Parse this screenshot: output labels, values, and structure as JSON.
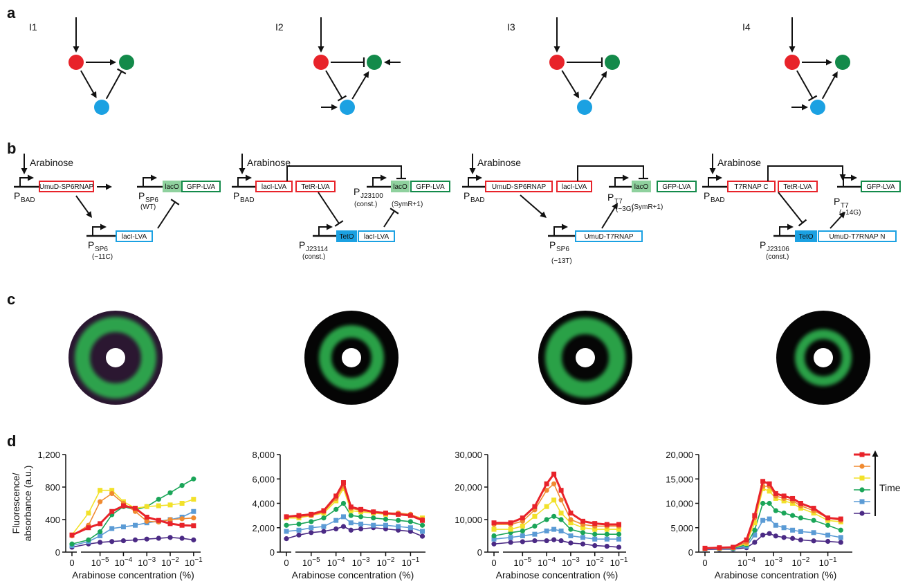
{
  "panels": [
    "a",
    "b",
    "c",
    "d"
  ],
  "networks": [
    "I1",
    "I2",
    "I3",
    "I4"
  ],
  "circuits": [
    {
      "input": "Arabinose",
      "parts": [
        "UmuD-SP6RNAP",
        "lacO",
        "GFP-LVA",
        "lacI-LVA"
      ],
      "promoters": [
        {
          "name": "P",
          "sub": "BAD"
        },
        {
          "name": "P",
          "sub": "SP6",
          "note": "(WT)"
        },
        {
          "name": "P",
          "sub": "SP6",
          "note": "(−11C)"
        }
      ]
    },
    {
      "input": "Arabinose",
      "parts": [
        "lacI-LVA",
        "TetR-LVA",
        "lacO",
        "GFP-LVA",
        "TetO",
        "lacI-LVA"
      ],
      "promoters": [
        {
          "name": "P",
          "sub": "BAD"
        },
        {
          "name": "P",
          "sub": "J23100",
          "note": "(const.)"
        },
        {
          "name": "P",
          "sub": "J23114",
          "note": "(const.)"
        }
      ],
      "extra": "(SymR+1)"
    },
    {
      "input": "Arabinose",
      "parts": [
        "UmuD-SP6RNAP",
        "lacI-LVA",
        "lacO",
        "GFP-LVA",
        "UmuD-T7RNAP"
      ],
      "promoters": [
        {
          "name": "P",
          "sub": "BAD"
        },
        {
          "name": "P",
          "sub": "T7",
          "note": "(−3G)"
        },
        {
          "name": "P",
          "sub": "SP6",
          "note": "(−13T)"
        }
      ],
      "extra": "(SymR+1)"
    },
    {
      "input": "Arabinose",
      "parts": [
        "T7RNAP C",
        "TetR-LVA",
        "GFP-LVA",
        "TetO",
        "UmuD-T7RNAP N"
      ],
      "promoters": [
        {
          "name": "P",
          "sub": "BAD"
        },
        {
          "name": "P",
          "sub": "T7",
          "note": "(−14G)"
        },
        {
          "name": "P",
          "sub": "J23106",
          "note": "(const.)"
        }
      ]
    }
  ],
  "chart_data": [
    {
      "type": "line",
      "xscale": "log",
      "xlabel": "Arabinose concentration (%)",
      "ylabel": [
        "Fluorescence/",
        "absorbance (a.u.)"
      ],
      "x": [
        0,
        3.2e-06,
        1e-05,
        3.2e-05,
        0.0001,
        0.00032,
        0.001,
        0.0032,
        0.01,
        0.032,
        0.1
      ],
      "xlim": [
        2e-06,
        0.2
      ],
      "xticks": [
        0,
        {
          "value": 1e-05,
          "label": "10−5"
        },
        {
          "value": 0.0001,
          "label": "10−4"
        },
        {
          "value": 0.001,
          "label": "10−3"
        },
        {
          "value": 0.01,
          "label": "10−2"
        },
        {
          "value": 0.1,
          "label": "10−1"
        }
      ],
      "ylim": [
        0,
        1200
      ],
      "yticks": [
        0,
        400,
        800,
        {
          "value": 1200,
          "label": "1,200"
        }
      ],
      "series": [
        {
          "color": "#e8232a",
          "marker": "square",
          "values": [
            210,
            300,
            350,
            500,
            570,
            540,
            430,
            390,
            350,
            330,
            325
          ]
        },
        {
          "color": "#f08a30",
          "marker": "circle",
          "values": [
            200,
            330,
            620,
            720,
            600,
            500,
            380,
            370,
            400,
            410,
            420
          ]
        },
        {
          "color": "#f2e12a",
          "marker": "square",
          "values": [
            210,
            480,
            760,
            760,
            620,
            540,
            560,
            570,
            580,
            600,
            650
          ]
        },
        {
          "color": "#1aa558",
          "marker": "circle",
          "values": [
            100,
            150,
            250,
            460,
            560,
            520,
            560,
            650,
            730,
            820,
            900
          ]
        },
        {
          "color": "#5b9bd5",
          "marker": "square",
          "values": [
            80,
            130,
            200,
            290,
            310,
            330,
            360,
            380,
            400,
            430,
            500
          ]
        },
        {
          "color": "#4b2a85",
          "marker": "circle",
          "values": [
            60,
            100,
            120,
            130,
            140,
            150,
            160,
            170,
            180,
            170,
            150
          ]
        }
      ]
    },
    {
      "type": "line",
      "xscale": "log",
      "xlabel": "Arabinose concentration (%)",
      "x": [
        0,
        3.2e-06,
        1e-05,
        3.2e-05,
        0.0001,
        0.0002,
        0.0004,
        0.001,
        0.0032,
        0.01,
        0.032,
        0.1,
        0.3
      ],
      "xlim": [
        3e-06,
        0.4
      ],
      "xticks": [
        0,
        {
          "value": 1e-05,
          "label": "10−5"
        },
        {
          "value": 0.0001,
          "label": "10−4"
        },
        {
          "value": 0.001,
          "label": "10−3"
        },
        {
          "value": 0.01,
          "label": "10−2"
        },
        {
          "value": 0.1,
          "label": "10−1"
        }
      ],
      "ylim": [
        0,
        8000
      ],
      "yticks": [
        0,
        {
          "value": 2000,
          "label": "2,000"
        },
        {
          "value": 4000,
          "label": "4,000"
        },
        {
          "value": 6000,
          "label": "6,000"
        },
        {
          "value": 8000,
          "label": "8,000"
        }
      ],
      "series": [
        {
          "color": "#e8232a",
          "marker": "square",
          "values": [
            2900,
            3000,
            3100,
            3400,
            4600,
            5700,
            3700,
            3500,
            3300,
            3200,
            3100,
            3000,
            2600
          ]
        },
        {
          "color": "#f08a30",
          "marker": "circle",
          "values": [
            2900,
            2900,
            3000,
            3300,
            4400,
            5400,
            3600,
            3400,
            3300,
            3200,
            3200,
            3100,
            2700
          ]
        },
        {
          "color": "#f2e12a",
          "marker": "square",
          "values": [
            2800,
            2800,
            3000,
            3200,
            4200,
            5200,
            3400,
            3300,
            3200,
            3100,
            3100,
            3000,
            2800
          ]
        },
        {
          "color": "#1aa558",
          "marker": "circle",
          "values": [
            2200,
            2300,
            2500,
            2800,
            3500,
            4000,
            3000,
            2900,
            2800,
            2700,
            2600,
            2500,
            2200
          ]
        },
        {
          "color": "#5b9bd5",
          "marker": "square",
          "values": [
            1700,
            1800,
            2000,
            2100,
            2600,
            2900,
            2400,
            2300,
            2200,
            2200,
            2100,
            2000,
            1700
          ]
        },
        {
          "color": "#4b2a85",
          "marker": "circle",
          "values": [
            1100,
            1400,
            1600,
            1700,
            1900,
            2100,
            1800,
            1900,
            2000,
            1900,
            1800,
            1700,
            1300
          ]
        }
      ]
    },
    {
      "type": "line",
      "xscale": "log",
      "xlabel": "Arabinose concentration (%)",
      "x": [
        0,
        3.2e-06,
        1e-05,
        3.2e-05,
        0.0001,
        0.0002,
        0.0004,
        0.001,
        0.0032,
        0.01,
        0.032,
        0.1
      ],
      "xlim": [
        2e-06,
        0.2
      ],
      "xticks": [
        0,
        {
          "value": 1e-05,
          "label": "10−5"
        },
        {
          "value": 0.0001,
          "label": "10−4"
        },
        {
          "value": 0.001,
          "label": "10−3"
        },
        {
          "value": 0.01,
          "label": "10−2"
        },
        {
          "value": 0.1,
          "label": "10−1"
        }
      ],
      "ylim": [
        0,
        30000
      ],
      "yticks": [
        0,
        {
          "value": 10000,
          "label": "10,000"
        },
        {
          "value": 20000,
          "label": "20,000"
        },
        {
          "value": 30000,
          "label": "30,000"
        }
      ],
      "series": [
        {
          "color": "#e8232a",
          "marker": "square",
          "values": [
            9000,
            9000,
            10500,
            14000,
            21000,
            24000,
            19000,
            12000,
            9500,
            8800,
            8500,
            8500
          ]
        },
        {
          "color": "#f08a30",
          "marker": "circle",
          "values": [
            8500,
            8500,
            9500,
            13000,
            19000,
            21000,
            16000,
            10000,
            8500,
            8000,
            8000,
            8000
          ]
        },
        {
          "color": "#f2e12a",
          "marker": "square",
          "values": [
            7000,
            7000,
            8000,
            11000,
            14000,
            16000,
            12000,
            9000,
            7500,
            7000,
            7000,
            7000
          ]
        },
        {
          "color": "#1aa558",
          "marker": "circle",
          "values": [
            5000,
            6000,
            6500,
            8000,
            10000,
            11000,
            10000,
            7000,
            6000,
            5500,
            5500,
            5500
          ]
        },
        {
          "color": "#5b9bd5",
          "marker": "square",
          "values": [
            4000,
            4500,
            5000,
            5500,
            6500,
            7000,
            6500,
            5000,
            4500,
            4000,
            4000,
            4000
          ]
        },
        {
          "color": "#4b2a85",
          "marker": "circle",
          "values": [
            2500,
            3000,
            3200,
            3500,
            3500,
            3800,
            3500,
            2800,
            2500,
            2000,
            1800,
            1500
          ]
        }
      ]
    },
    {
      "type": "line",
      "xscale": "log",
      "xlabel": "Arabinose concentration (%)",
      "legend_title": "Time",
      "x": [
        0,
        1e-05,
        3.2e-05,
        0.0001,
        0.0002,
        0.0004,
        0.0007,
        0.0012,
        0.0024,
        0.005,
        0.01,
        0.03,
        0.1,
        0.3
      ],
      "xlim": [
        8e-06,
        0.8
      ],
      "xticks": [
        0,
        {
          "value": 0.0001,
          "label": "10−4"
        },
        {
          "value": 0.001,
          "label": "10−3"
        },
        {
          "value": 0.01,
          "label": "10−2"
        },
        {
          "value": 0.1,
          "label": "10−1"
        }
      ],
      "ylim": [
        0,
        20000
      ],
      "yticks": [
        0,
        {
          "value": 5000,
          "label": "5,000"
        },
        {
          "value": 10000,
          "label": "10,000"
        },
        {
          "value": 15000,
          "label": "15,000"
        },
        {
          "value": 20000,
          "label": "20,000"
        }
      ],
      "series": [
        {
          "color": "#e8232a",
          "marker": "square",
          "values": [
            800,
            900,
            1000,
            2500,
            7500,
            14500,
            14000,
            12000,
            11500,
            11000,
            10000,
            9000,
            7000,
            6800
          ]
        },
        {
          "color": "#f08a30",
          "marker": "circle",
          "values": [
            700,
            800,
            900,
            2000,
            7000,
            13500,
            13500,
            11500,
            11000,
            10500,
            9500,
            8500,
            7000,
            6500
          ]
        },
        {
          "color": "#f2e12a",
          "marker": "square",
          "values": [
            700,
            800,
            900,
            1800,
            6000,
            13000,
            12500,
            11000,
            10500,
            10000,
            9000,
            8000,
            6500,
            6200
          ]
        },
        {
          "color": "#1aa558",
          "marker": "circle",
          "values": [
            700,
            800,
            800,
            1500,
            4500,
            10000,
            10000,
            8500,
            8000,
            7500,
            7000,
            6500,
            5500,
            4500
          ]
        },
        {
          "color": "#5b9bd5",
          "marker": "square",
          "values": [
            600,
            700,
            700,
            1200,
            3500,
            6500,
            6800,
            5500,
            5000,
            4500,
            4200,
            4000,
            3500,
            3000
          ]
        },
        {
          "color": "#4b2a85",
          "marker": "circle",
          "values": [
            500,
            600,
            600,
            900,
            2000,
            3500,
            3800,
            3300,
            3000,
            2800,
            2500,
            2300,
            2200,
            2000
          ]
        }
      ]
    }
  ]
}
